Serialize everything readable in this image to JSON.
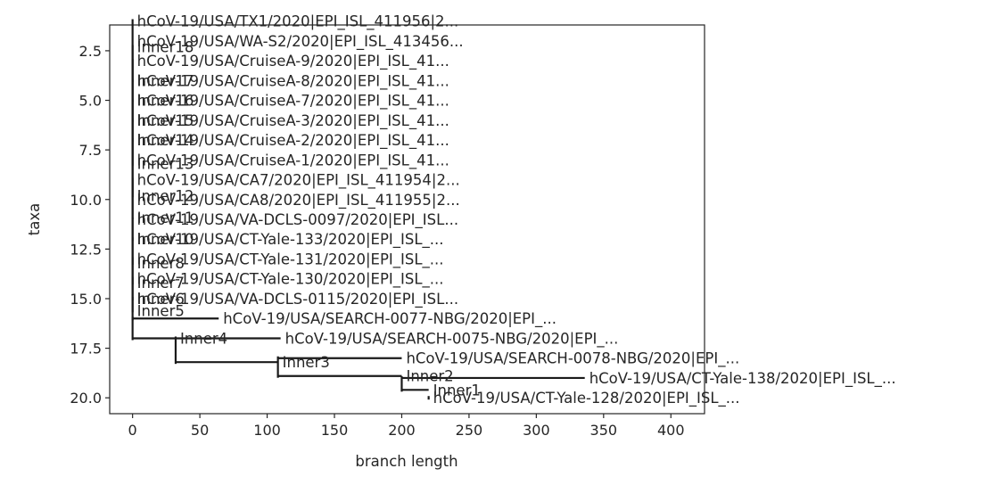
{
  "chart_data": {
    "type": "phylogenetic-tree",
    "xlabel": "branch length",
    "ylabel": "taxa",
    "xlim": [
      -17,
      425
    ],
    "ylim": [
      20.8,
      1.2
    ],
    "x_ticks": [
      0,
      50,
      100,
      150,
      200,
      250,
      300,
      350,
      400
    ],
    "y_ticks": [
      2.5,
      5.0,
      7.5,
      10.0,
      12.5,
      15.0,
      17.5,
      20.0
    ],
    "y_tick_labels": [
      "2.5",
      "5.0",
      "7.5",
      "10.0",
      "12.5",
      "15.0",
      "17.5",
      "20.0"
    ],
    "clades": [
      {
        "id": "leaf-tx1",
        "name": "hCoV-19/USA/TX1/2020|EPI_ISL_411956|2...",
        "x": 0,
        "y": 1,
        "parent": "inner18"
      },
      {
        "id": "leaf-wa-s2",
        "name": "hCoV-19/USA/WA-S2/2020|EPI_ISL_413456...",
        "x": 0,
        "y": 2,
        "parent": "inner18"
      },
      {
        "id": "leaf-cruisea9",
        "name": "hCoV-19/USA/CruiseA-9/2020|EPI_ISL_41...",
        "x": 0,
        "y": 3,
        "parent": "inner17"
      },
      {
        "id": "leaf-cruisea8",
        "name": "hCoV-19/USA/CruiseA-8/2020|EPI_ISL_41...",
        "x": 0,
        "y": 4,
        "parent": "inner16"
      },
      {
        "id": "leaf-cruisea7",
        "name": "hCoV-19/USA/CruiseA-7/2020|EPI_ISL_41...",
        "x": 0,
        "y": 5,
        "parent": "inner15"
      },
      {
        "id": "leaf-cruisea3",
        "name": "hCoV-19/USA/CruiseA-3/2020|EPI_ISL_41...",
        "x": 0,
        "y": 6,
        "parent": "inner14"
      },
      {
        "id": "leaf-cruisea2",
        "name": "hCoV-19/USA/CruiseA-2/2020|EPI_ISL_41...",
        "x": 0,
        "y": 7,
        "parent": "inner13"
      },
      {
        "id": "leaf-cruisea1",
        "name": "hCoV-19/USA/CruiseA-1/2020|EPI_ISL_41...",
        "x": 0,
        "y": 8,
        "parent": "inner13"
      },
      {
        "id": "leaf-ca7",
        "name": "hCoV-19/USA/CA7/2020|EPI_ISL_411954|2...",
        "x": 0,
        "y": 9,
        "parent": "inner12"
      },
      {
        "id": "leaf-ca8",
        "name": "hCoV-19/USA/CA8/2020|EPI_ISL_411955|2...",
        "x": 0,
        "y": 10,
        "parent": "inner12"
      },
      {
        "id": "leaf-va0097",
        "name": "hCoV-19/USA/VA-DCLS-0097/2020|EPI_ISL...",
        "x": 0,
        "y": 11,
        "parent": "inner11"
      },
      {
        "id": "leaf-ct133",
        "name": "hCoV-19/USA/CT-Yale-133/2020|EPI_ISL_...",
        "x": 0,
        "y": 12,
        "parent": "inner10"
      },
      {
        "id": "leaf-ct131",
        "name": "hCoV-19/USA/CT-Yale-131/2020|EPI_ISL_...",
        "x": 0,
        "y": 13,
        "parent": "inner8"
      },
      {
        "id": "leaf-ct130",
        "name": "hCoV-19/USA/CT-Yale-130/2020|EPI_ISL_...",
        "x": 0,
        "y": 14,
        "parent": "inner7"
      },
      {
        "id": "leaf-va0115",
        "name": "hCoV-19/USA/VA-DCLS-0115/2020|EPI_ISL...",
        "x": 0,
        "y": 15,
        "parent": "inner6"
      },
      {
        "id": "leaf-search0077",
        "name": "hCoV-19/USA/SEARCH-0077-NBG/2020|EPI_...",
        "x": 64,
        "y": 16,
        "parent": "inner5"
      },
      {
        "id": "leaf-search0075",
        "name": "hCoV-19/USA/SEARCH-0075-NBG/2020|EPI_...",
        "x": 110,
        "y": 17,
        "parent": "inner4"
      },
      {
        "id": "leaf-search0078",
        "name": "hCoV-19/USA/SEARCH-0078-NBG/2020|EPI_...",
        "x": 200,
        "y": 18,
        "parent": "inner3"
      },
      {
        "id": "leaf-ct138",
        "name": "hCoV-19/USA/CT-Yale-138/2020|EPI_ISL_...",
        "x": 336,
        "y": 19,
        "parent": "inner2"
      },
      {
        "id": "leaf-ct128",
        "name": "hCoV-19/USA/CT-Yale-128/2020|EPI_ISL_...",
        "x": 220,
        "y": 20,
        "parent": "inner1"
      },
      {
        "id": "inner1",
        "name": "Inner1",
        "x": 220,
        "y": 19.6,
        "parent": "inner2"
      },
      {
        "id": "inner2",
        "name": "Inner2",
        "x": 200,
        "y": 18.9,
        "parent": "inner3"
      },
      {
        "id": "inner3",
        "name": "Inner3",
        "x": 108,
        "y": 18.2,
        "parent": "inner4"
      },
      {
        "id": "inner4",
        "name": "Inner4",
        "x": 32,
        "y": 17.0,
        "parent": "root"
      },
      {
        "id": "inner5",
        "name": "Inner5",
        "x": 0,
        "y": 15.6,
        "parent": "inner6"
      },
      {
        "id": "inner6",
        "name": "Inner6",
        "x": 0,
        "y": 15.0,
        "parent": "inner7"
      },
      {
        "id": "inner7",
        "name": "Inner7",
        "x": 0,
        "y": 14.2,
        "parent": "inner8"
      },
      {
        "id": "inner8",
        "name": "Inner8",
        "x": 0,
        "y": 13.2,
        "parent": "inner10"
      },
      {
        "id": "inner10",
        "name": "Inner10",
        "x": 0,
        "y": 12.0,
        "parent": "inner11"
      },
      {
        "id": "inner11",
        "name": "Inner11",
        "x": 0,
        "y": 10.9,
        "parent": "inner12"
      },
      {
        "id": "inner12",
        "name": "Inner12",
        "x": 0,
        "y": 9.8,
        "parent": "inner13"
      },
      {
        "id": "inner13",
        "name": "Inner13",
        "x": 0,
        "y": 8.2,
        "parent": "inner14"
      },
      {
        "id": "inner14",
        "name": "Inner14",
        "x": 0,
        "y": 7.0,
        "parent": "inner15"
      },
      {
        "id": "inner15",
        "name": "Inner15",
        "x": 0,
        "y": 6.0,
        "parent": "inner16"
      },
      {
        "id": "inner16",
        "name": "Inner16",
        "x": 0,
        "y": 5.0,
        "parent": "inner17"
      },
      {
        "id": "inner17",
        "name": "Inner17",
        "x": 0,
        "y": 4.0,
        "parent": "inner18"
      },
      {
        "id": "inner18",
        "name": "Inner18",
        "x": 0,
        "y": 2.3,
        "parent": "root"
      },
      {
        "id": "root",
        "name": "",
        "x": 0,
        "y": 9.5,
        "parent": null
      }
    ]
  }
}
